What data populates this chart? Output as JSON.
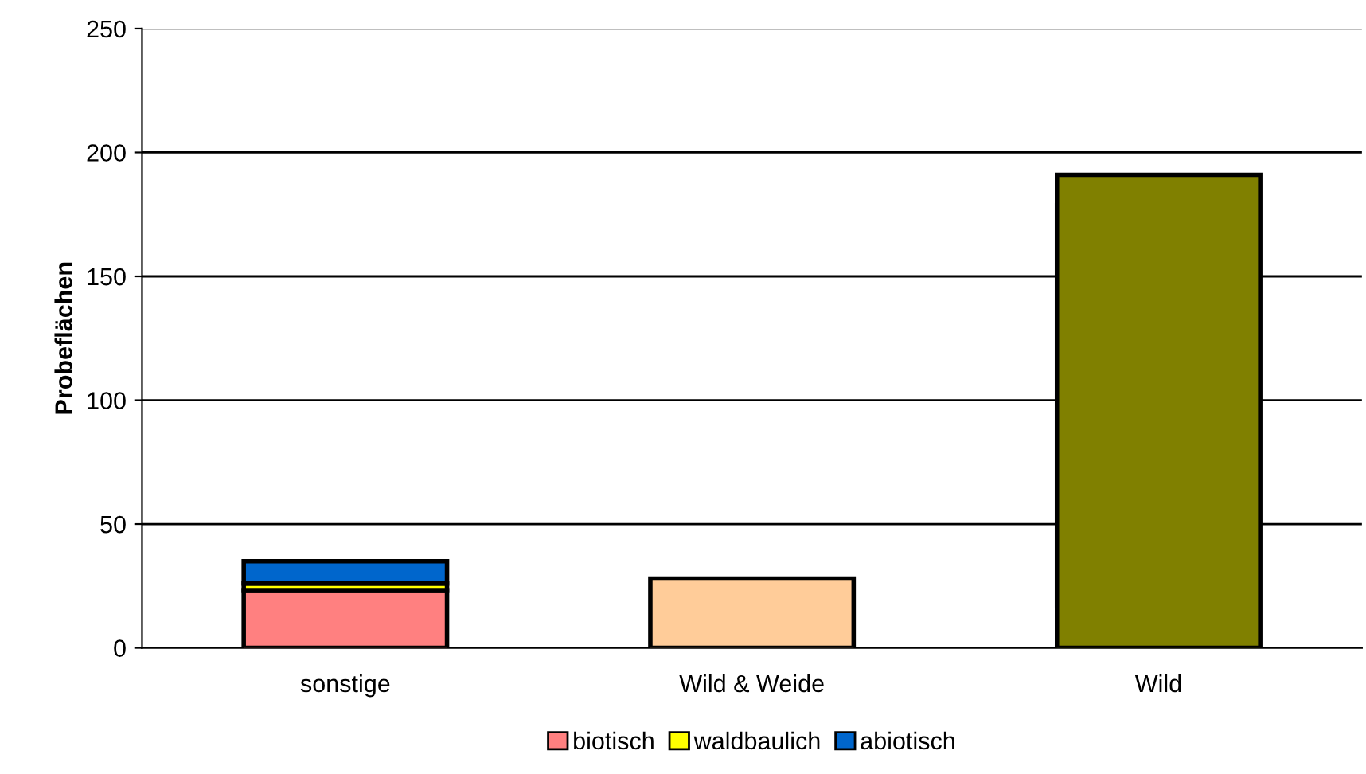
{
  "chart_data": {
    "type": "bar",
    "stacked": true,
    "ylabel": "Probeflächen",
    "categories": [
      "sonstige",
      "Wild & Weide",
      "Wild"
    ],
    "series": [
      {
        "name": "biotisch",
        "color": "#ff8080",
        "values": [
          23,
          null,
          null
        ]
      },
      {
        "name": "waldbaulich",
        "color": "#ffff00",
        "values": [
          3,
          null,
          null
        ]
      },
      {
        "name": "abiotisch",
        "color": "#0066cc",
        "values": [
          9,
          null,
          null
        ]
      },
      {
        "colors": [
          "#ffffff",
          "#ffcc99",
          "#808000"
        ],
        "values": [
          null,
          28,
          191
        ]
      }
    ],
    "ylim": [
      0,
      250
    ],
    "yticks": [
      0,
      50,
      100,
      150,
      200,
      250
    ],
    "grid": "y",
    "legend": "bottom"
  }
}
